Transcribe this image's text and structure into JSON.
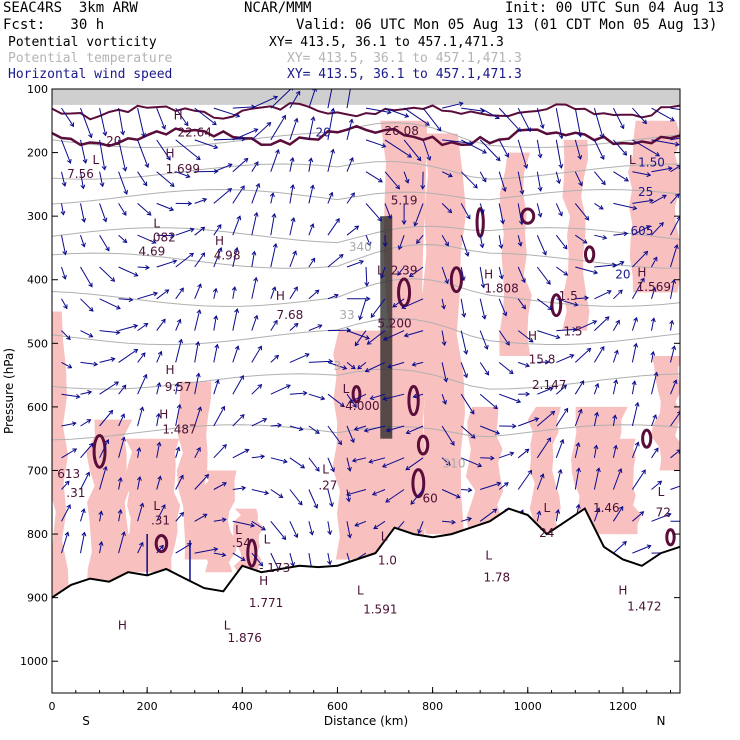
{
  "header": {
    "model": "SEAC4RS  3km ARW",
    "org": "NCAR/MMM",
    "init": "Init: 00 UTC Sun 04 Aug 13",
    "fcst": "Fcst:   30 h",
    "valid": "Valid: 06 UTC Mon 05 Aug 13 (01 CDT Mon 05 Aug 13)",
    "fields": [
      {
        "name": "Potential vorticity",
        "xy": "XY= 413.5, 36.1 to 457.1,471.3"
      },
      {
        "name": "Potential temperature",
        "xy": "XY= 413.5, 36.1 to 457.1,471.3"
      },
      {
        "name": "Horizontal wind speed",
        "xy": "XY= 413.5, 36.1 to 457.1,471.3"
      }
    ]
  },
  "colors": {
    "pv_fill": "#f9c0c0",
    "pv_contour": "#5a0d3a",
    "theta_contour": "#b0b0b0",
    "wind": "#0a0a8c",
    "terrain": "#000000",
    "terrain_fill": "#ffffff"
  },
  "chart_data": {
    "type": "cross-section",
    "xlabel": "Distance (km)",
    "ylabel": "Pressure (hPa)",
    "xlim": [
      0,
      1320
    ],
    "ylim": [
      1050,
      100
    ],
    "x_ticks": [
      "0",
      "200",
      "400",
      "600",
      "800",
      "1000",
      "1200"
    ],
    "y_ticks": [
      "100",
      "200",
      "300",
      "400",
      "500",
      "600",
      "700",
      "800",
      "900",
      "1000"
    ],
    "x_end_labels": {
      "left": "S",
      "right": "N"
    },
    "terrain_profile": {
      "x_km": [
        0,
        40,
        80,
        120,
        160,
        200,
        240,
        280,
        320,
        360,
        400,
        440,
        480,
        520,
        560,
        600,
        640,
        680,
        720,
        760,
        800,
        840,
        880,
        920,
        960,
        1000,
        1040,
        1080,
        1120,
        1160,
        1200,
        1240,
        1280,
        1320
      ],
      "p_hpa": [
        900,
        880,
        870,
        875,
        860,
        865,
        855,
        870,
        885,
        890,
        850,
        860,
        855,
        850,
        852,
        850,
        840,
        830,
        790,
        800,
        805,
        800,
        790,
        780,
        760,
        770,
        800,
        780,
        760,
        820,
        840,
        850,
        830,
        820
      ]
    },
    "labels": [
      {
        "kind": "pv",
        "text": "20",
        "x": 130,
        "p": 188
      },
      {
        "kind": "pv",
        "text": "H",
        "x": 265,
        "p": 148
      },
      {
        "kind": "pv",
        "text": "22.64",
        "x": 300,
        "p": 175
      },
      {
        "kind": "ws",
        "text": "20",
        "x": 570,
        "p": 175
      },
      {
        "kind": "pv",
        "text": "26.08",
        "x": 735,
        "p": 172
      },
      {
        "kind": "pv",
        "text": "L",
        "x": 92,
        "p": 218
      },
      {
        "kind": "pv",
        "text": "7.56",
        "x": 60,
        "p": 240
      },
      {
        "kind": "pv",
        "text": "H",
        "x": 248,
        "p": 208
      },
      {
        "kind": "pv",
        "text": "1.699",
        "x": 275,
        "p": 232
      },
      {
        "kind": "pv",
        "text": "L",
        "x": 1220,
        "p": 218
      },
      {
        "kind": "ws",
        "text": "1.50",
        "x": 1260,
        "p": 222
      },
      {
        "kind": "ws",
        "text": "25",
        "x": 1248,
        "p": 268
      },
      {
        "kind": "pv",
        "text": "L",
        "x": 220,
        "p": 318
      },
      {
        "kind": "pv",
        "text": ".082",
        "x": 232,
        "p": 340
      },
      {
        "kind": "pv",
        "text": "4.69",
        "x": 210,
        "p": 362
      },
      {
        "kind": "pv",
        "text": "H",
        "x": 352,
        "p": 345
      },
      {
        "kind": "pv",
        "text": "4.98",
        "x": 368,
        "p": 368
      },
      {
        "kind": "th",
        "text": "340",
        "x": 648,
        "p": 355
      },
      {
        "kind": "ws",
        "text": "605",
        "x": 1240,
        "p": 330
      },
      {
        "kind": "pv",
        "text": "5.19",
        "x": 740,
        "p": 282
      },
      {
        "kind": "pv",
        "text": "L",
        "x": 690,
        "p": 392
      },
      {
        "kind": "pv",
        "text": "2.39",
        "x": 740,
        "p": 392
      },
      {
        "kind": "pv",
        "text": "H",
        "x": 918,
        "p": 398
      },
      {
        "kind": "pv",
        "text": "1.808",
        "x": 945,
        "p": 420
      },
      {
        "kind": "pv",
        "text": "1.5",
        "x": 1085,
        "p": 432
      },
      {
        "kind": "ws",
        "text": "20",
        "x": 1200,
        "p": 398
      },
      {
        "kind": "pv",
        "text": "H",
        "x": 1240,
        "p": 395
      },
      {
        "kind": "pv",
        "text": "1.569",
        "x": 1265,
        "p": 418
      },
      {
        "kind": "pv",
        "text": "H",
        "x": 480,
        "p": 432
      },
      {
        "kind": "pv",
        "text": "7.68",
        "x": 500,
        "p": 462
      },
      {
        "kind": "th",
        "text": "33",
        "x": 620,
        "p": 462
      },
      {
        "kind": "pv",
        "text": "5.200",
        "x": 720,
        "p": 475
      },
      {
        "kind": "pv",
        "text": "1.5",
        "x": 1095,
        "p": 488
      },
      {
        "kind": "pv",
        "text": "H",
        "x": 1010,
        "p": 495
      },
      {
        "kind": "pv",
        "text": "15.8",
        "x": 1030,
        "p": 532
      },
      {
        "kind": "pv",
        "text": "2.147",
        "x": 1045,
        "p": 572
      },
      {
        "kind": "th",
        "text": "3",
        "x": 600,
        "p": 542
      },
      {
        "kind": "pv",
        "text": "H",
        "x": 248,
        "p": 548
      },
      {
        "kind": "pv",
        "text": "9.57",
        "x": 265,
        "p": 575
      },
      {
        "kind": "pv",
        "text": "L",
        "x": 618,
        "p": 578
      },
      {
        "kind": "pv",
        "text": "-4.000",
        "x": 648,
        "p": 605
      },
      {
        "kind": "pv",
        "text": "H",
        "x": 235,
        "p": 618
      },
      {
        "kind": "pv",
        "text": "1.487",
        "x": 268,
        "p": 642
      },
      {
        "kind": "pv",
        "text": "613",
        "x": 35,
        "p": 712
      },
      {
        "kind": "pv",
        "text": ".31",
        "x": 50,
        "p": 742
      },
      {
        "kind": "pv",
        "text": "L",
        "x": 575,
        "p": 705
      },
      {
        "kind": "pv",
        "text": ".27",
        "x": 580,
        "p": 730
      },
      {
        "kind": "th",
        "text": "310",
        "x": 845,
        "p": 695
      },
      {
        "kind": "pv",
        "text": "60",
        "x": 795,
        "p": 750
      },
      {
        "kind": "pv",
        "text": "L",
        "x": 1040,
        "p": 765
      },
      {
        "kind": "pv",
        "text": "24",
        "x": 1040,
        "p": 805
      },
      {
        "kind": "pv",
        "text": "1.46",
        "x": 1165,
        "p": 765
      },
      {
        "kind": "pv",
        "text": "L",
        "x": 1280,
        "p": 740
      },
      {
        "kind": "pv",
        "text": "72",
        "x": 1285,
        "p": 772
      },
      {
        "kind": "pv",
        "text": "L",
        "x": 220,
        "p": 762
      },
      {
        "kind": "pv",
        "text": ".31",
        "x": 228,
        "p": 785
      },
      {
        "kind": "pv",
        "text": "L",
        "x": 392,
        "p": 800
      },
      {
        "kind": "pv",
        "text": ".54",
        "x": 398,
        "p": 820
      },
      {
        "kind": "pv",
        "text": "L",
        "x": 452,
        "p": 815
      },
      {
        "kind": "pv",
        "text": "-.173",
        "x": 468,
        "p": 860
      },
      {
        "kind": "pv",
        "text": "L",
        "x": 698,
        "p": 810
      },
      {
        "kind": "pv",
        "text": "1.0",
        "x": 705,
        "p": 848
      },
      {
        "kind": "pv",
        "text": "L",
        "x": 918,
        "p": 840
      },
      {
        "kind": "pv",
        "text": "1.78",
        "x": 935,
        "p": 875
      },
      {
        "kind": "pv",
        "text": "H",
        "x": 445,
        "p": 880
      },
      {
        "kind": "pv",
        "text": "1.771",
        "x": 450,
        "p": 915
      },
      {
        "kind": "pv",
        "text": "L",
        "x": 648,
        "p": 895
      },
      {
        "kind": "pv",
        "text": "1.591",
        "x": 690,
        "p": 925
      },
      {
        "kind": "pv",
        "text": "H",
        "x": 148,
        "p": 950
      },
      {
        "kind": "pv",
        "text": "L",
        "x": 368,
        "p": 950
      },
      {
        "kind": "pv",
        "text": "1.876",
        "x": 405,
        "p": 970
      },
      {
        "kind": "pv",
        "text": "H",
        "x": 1200,
        "p": 895
      },
      {
        "kind": "pv",
        "text": "1.472",
        "x": 1245,
        "p": 920
      }
    ]
  }
}
